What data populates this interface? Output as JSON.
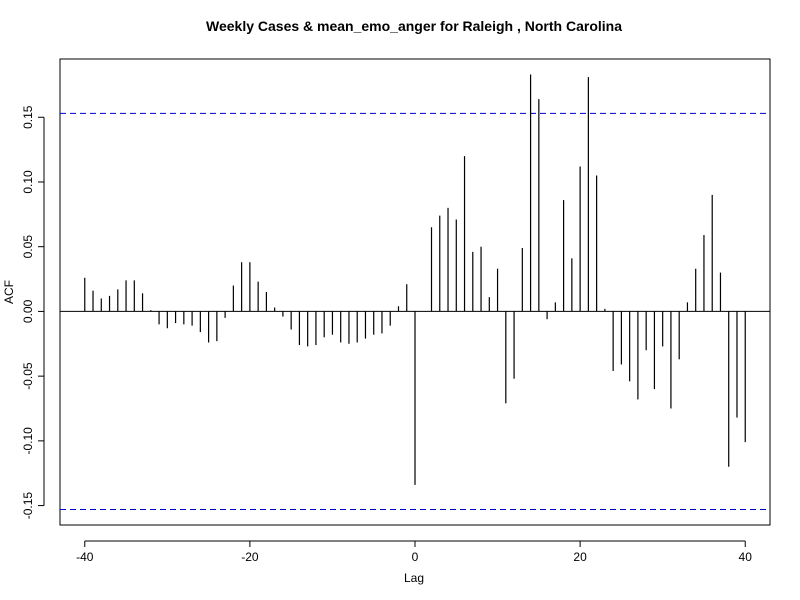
{
  "chart_data": {
    "type": "bar",
    "title": "Weekly Cases & mean_emo_anger for Raleigh , North Carolina",
    "xlabel": "Lag",
    "ylabel": "ACF",
    "xlim": [
      -43,
      43
    ],
    "ylim": [
      -0.165,
      0.195
    ],
    "x_ticks": [
      -40,
      -20,
      0,
      20,
      40
    ],
    "y_ticks": [
      -0.15,
      -0.1,
      -0.05,
      0.0,
      0.05,
      0.1,
      0.15
    ],
    "y_tick_labels": [
      "-0.15",
      "-0.10",
      "-0.05",
      "0.00",
      "0.05",
      "0.10",
      "0.15"
    ],
    "confidence_band": [
      -0.153,
      0.153
    ],
    "zero_line": 0.0,
    "colors": {
      "bars": "#000000",
      "confidence": "#0000cc",
      "zero": "#000000"
    },
    "grid": false,
    "series": [
      {
        "x": [
          -40,
          -39,
          -38,
          -37,
          -36,
          -35,
          -34,
          -33,
          -32,
          -31,
          -30,
          -29,
          -28,
          -27,
          -26,
          -25,
          -24,
          -23,
          -22,
          -21,
          -20,
          -19,
          -18,
          -17,
          -16,
          -15,
          -14,
          -13,
          -12,
          -11,
          -10,
          -9,
          -8,
          -7,
          -6,
          -5,
          -4,
          -3,
          -2,
          -1,
          0,
          1,
          2,
          3,
          4,
          5,
          6,
          7,
          8,
          9,
          10,
          11,
          12,
          13,
          14,
          15,
          16,
          17,
          18,
          19,
          20,
          21,
          22,
          23,
          24,
          25,
          26,
          27,
          28,
          29,
          30,
          31,
          32,
          33,
          34,
          35,
          36,
          37,
          38,
          39,
          40
        ],
        "values": [
          0.026,
          0.016,
          0.01,
          0.012,
          0.017,
          0.024,
          0.024,
          0.014,
          0.001,
          -0.01,
          -0.013,
          -0.009,
          -0.01,
          -0.011,
          -0.016,
          -0.024,
          -0.023,
          -0.005,
          0.02,
          0.038,
          0.038,
          0.023,
          0.015,
          0.003,
          -0.004,
          -0.014,
          -0.026,
          -0.027,
          -0.026,
          -0.02,
          -0.018,
          -0.024,
          -0.025,
          -0.024,
          -0.021,
          -0.018,
          -0.017,
          -0.011,
          0.004,
          0.021,
          -0.134,
          0.0,
          0.065,
          0.074,
          0.08,
          0.071,
          0.12,
          0.046,
          0.05,
          0.011,
          0.033,
          -0.071,
          -0.052,
          0.049,
          0.183,
          0.164,
          -0.006,
          0.007,
          0.086,
          0.041,
          0.112,
          0.181,
          0.105,
          0.002,
          -0.046,
          -0.041,
          -0.054,
          -0.068,
          -0.03,
          -0.06,
          -0.027,
          -0.075,
          -0.037,
          0.007,
          0.033,
          0.059,
          0.09,
          0.03,
          -0.12,
          -0.082,
          -0.101
        ]
      }
    ]
  }
}
